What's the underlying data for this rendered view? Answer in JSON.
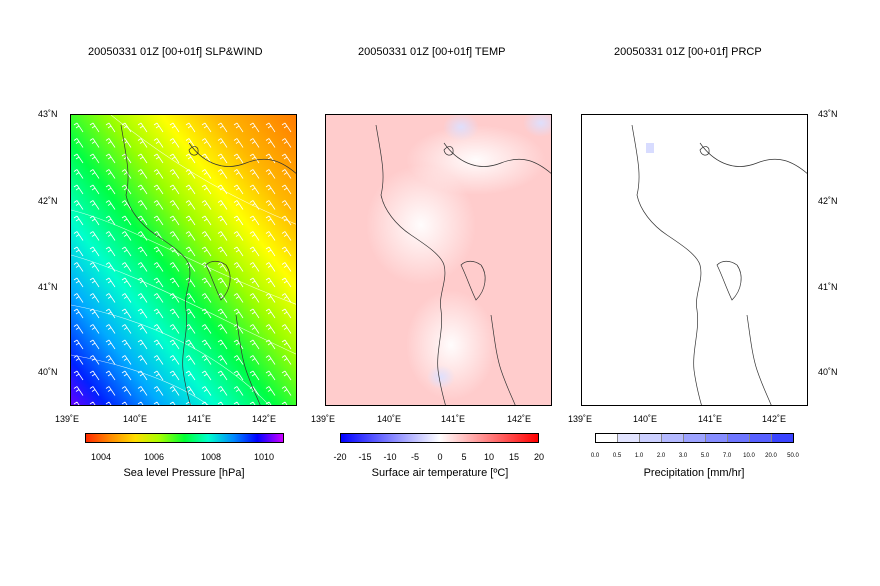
{
  "panels": [
    {
      "title": "20050331 01Z [00+01f] SLP&WIND",
      "colorbar_label": "Sea level Pressure [hPa]"
    },
    {
      "title": "20050331 01Z [00+01f] TEMP",
      "colorbar_label": "Surface air temperature [ºC]"
    },
    {
      "title": "20050331 01Z [00+01f] PRCP",
      "colorbar_label": "Precipitation [mm/hr]"
    }
  ],
  "lat_ticks": [
    "43˚N",
    "42˚N",
    "41˚N",
    "40˚N"
  ],
  "lon_ticks": [
    "139˚E",
    "140˚E",
    "141˚E",
    "142˚E"
  ],
  "slp_ticks": [
    "1004",
    "1006",
    "1008",
    "1010"
  ],
  "temp_ticks": [
    "-20",
    "-15",
    "-10",
    "-5",
    "0",
    "5",
    "10",
    "15",
    "20"
  ],
  "prcp_ticks": [
    "0.0",
    "0.5",
    "1.0",
    "2.0",
    "3.0",
    "5.0",
    "7.0",
    "10.0",
    "20.0",
    "50.0"
  ],
  "chart_data": [
    {
      "type": "heatmap",
      "title": "20050331 01Z [00+01f] SLP&WIND",
      "variable": "Sea level Pressure [hPa]",
      "colorbar_range": [
        1003,
        1011
      ],
      "lon_range": [
        139,
        142.5
      ],
      "lat_range": [
        39.6,
        43
      ],
      "colors": [
        "#ff2a00",
        "#ffaa00",
        "#ffff00",
        "#00ff00",
        "#00ffff",
        "#0000ff",
        "#cc00ff"
      ]
    },
    {
      "type": "heatmap",
      "title": "20050331 01Z [00+01f] TEMP",
      "variable": "Surface air temperature [ºC]",
      "colorbar_range": [
        -20,
        20
      ],
      "lon_range": [
        139,
        142.5
      ],
      "lat_range": [
        39.6,
        43
      ],
      "colors": [
        "#0000ff",
        "#ffffff",
        "#ff0000"
      ]
    },
    {
      "type": "heatmap",
      "title": "20050331 01Z [00+01f] PRCP",
      "variable": "Precipitation [mm/hr]",
      "colorbar_levels": [
        0.0,
        0.5,
        1.0,
        2.0,
        3.0,
        5.0,
        7.0,
        10.0,
        20.0,
        50.0
      ],
      "lon_range": [
        139,
        142.5
      ],
      "lat_range": [
        39.6,
        43
      ],
      "colors": [
        "#ffffff",
        "#2a2aff"
      ]
    }
  ]
}
